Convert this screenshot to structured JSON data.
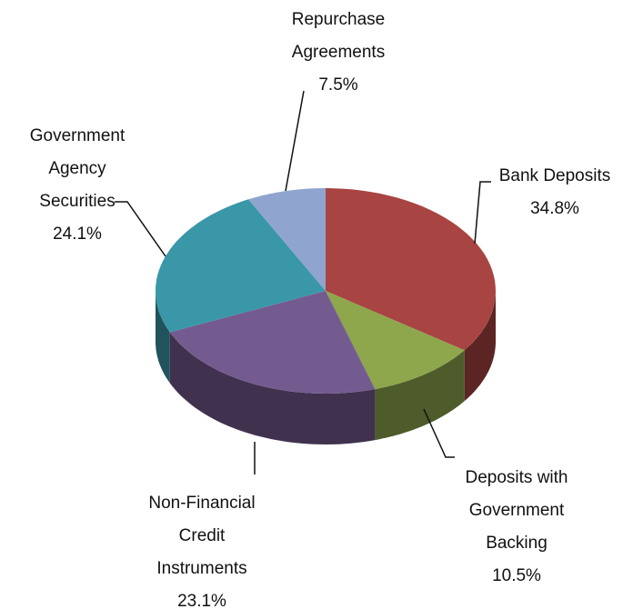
{
  "chart_data": {
    "type": "pie3d",
    "categories": [
      "Bank Deposits",
      "Deposits with Government Backing",
      "Non-Financial Credit Instruments",
      "Government Agency Securities",
      "Repurchase Agreements"
    ],
    "values": [
      34.8,
      10.5,
      23.1,
      24.1,
      7.5
    ],
    "value_labels": [
      "34.8%",
      "10.5%",
      "23.1%",
      "24.1%",
      "7.5%"
    ],
    "colors": [
      "#a84442",
      "#8ea64c",
      "#745b8f",
      "#3a97a8",
      "#8fa5cf"
    ]
  }
}
